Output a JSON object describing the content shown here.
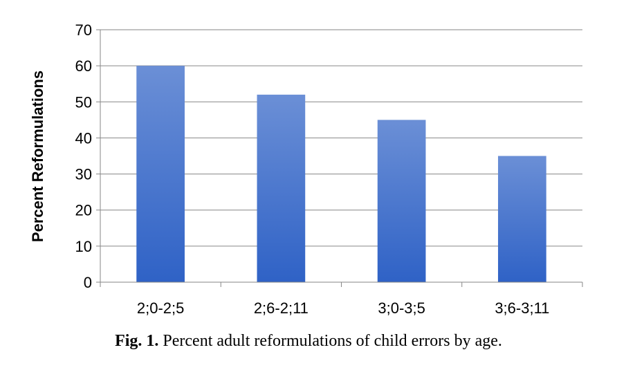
{
  "chart_data": {
    "type": "bar",
    "categories": [
      "2;0-2;5",
      "2;6-2;11",
      "3;0-3;5",
      "3;6-3;11"
    ],
    "values": [
      60,
      52,
      45,
      35
    ],
    "ylabel": "Percent Reformulations",
    "xlabel": "",
    "ylim": [
      0,
      70
    ],
    "yticks": [
      0,
      10,
      20,
      30,
      40,
      50,
      60,
      70
    ],
    "grid": true,
    "bar_color_top": "#6b8fd6",
    "bar_color_bottom": "#2f62c6"
  },
  "caption": {
    "label": "Fig. 1.",
    "text": "Percent adult reformulations of child errors by age."
  }
}
